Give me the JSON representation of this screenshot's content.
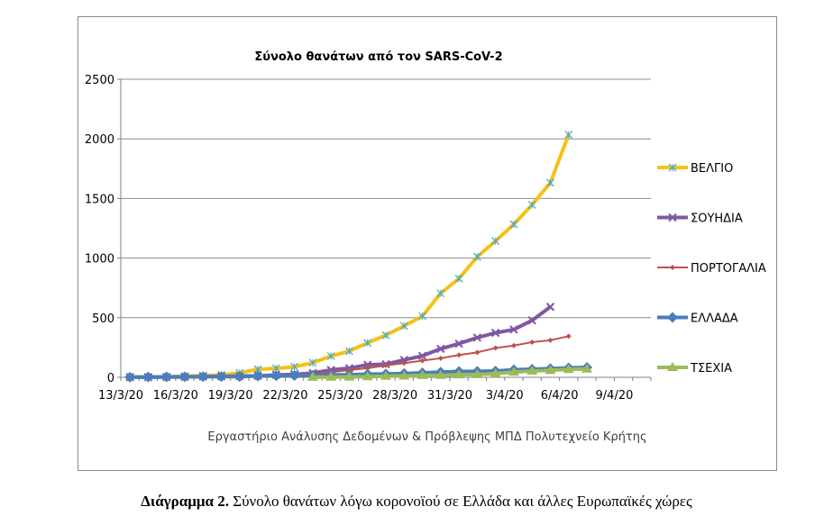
{
  "chart_data": {
    "type": "line",
    "title": "Σύνολο θανάτων από τον SARS-CoV-2",
    "xlabel": "",
    "ylabel": "",
    "ylim": [
      0,
      2500
    ],
    "yticks": [
      "0",
      "500",
      "1000",
      "1500",
      "2000",
      "2500"
    ],
    "xticks": [
      "13/3/20",
      "16/3/20",
      "19/3/20",
      "22/3/20",
      "25/3/20",
      "28/3/20",
      "31/3/20",
      "3/4/20",
      "6/4/20",
      "9/4/20"
    ],
    "x": [
      "13/3/20",
      "14/3/20",
      "15/3/20",
      "16/3/20",
      "17/3/20",
      "18/3/20",
      "19/3/20",
      "20/3/20",
      "21/3/20",
      "22/3/20",
      "23/3/20",
      "24/3/20",
      "25/3/20",
      "26/3/20",
      "27/3/20",
      "28/3/20",
      "29/3/20",
      "30/3/20",
      "31/3/20",
      "1/4/20",
      "2/4/20",
      "3/4/20",
      "4/4/20",
      "5/4/20",
      "6/4/20",
      "7/4/20",
      "8/4/20"
    ],
    "grid": "horizontal",
    "legend_position": "right",
    "series": [
      {
        "name": "ΒΕΛΓΙΟ",
        "color": "#f5c116",
        "marker": "asterisk",
        "values": [
          3,
          4,
          5,
          10,
          14,
          21,
          37,
          67,
          75,
          88,
          122,
          178,
          220,
          289,
          353,
          431,
          513,
          705,
          828,
          1011,
          1143,
          1283,
          1447,
          1632,
          2035,
          null,
          null
        ]
      },
      {
        "name": "ΣΟΥΗΔΙΑ",
        "color": "#7f58a3",
        "marker": "x",
        "values": [
          1,
          1,
          2,
          3,
          6,
          8,
          10,
          12,
          20,
          25,
          36,
          62,
          77,
          105,
          110,
          146,
          180,
          239,
          282,
          333,
          373,
          401,
          477,
          591,
          null,
          null,
          null
        ]
      },
      {
        "name": "ΠΟΡΤΟΓΑΛΙΑ",
        "color": "#c0504d",
        "marker": "diamond",
        "values": [
          0,
          0,
          1,
          1,
          2,
          3,
          6,
          12,
          14,
          23,
          33,
          43,
          60,
          76,
          100,
          119,
          140,
          160,
          187,
          209,
          246,
          266,
          295,
          311,
          345,
          null,
          null
        ]
      },
      {
        "name": "ΕΛΛΑΔΑ",
        "color": "#4a7ebb",
        "marker": "diamond",
        "values": [
          1,
          3,
          4,
          5,
          6,
          6,
          6,
          10,
          13,
          15,
          17,
          20,
          22,
          26,
          28,
          32,
          38,
          43,
          49,
          50,
          53,
          63,
          68,
          73,
          79,
          83,
          null
        ]
      },
      {
        "name": "ΤΣΕΧΙΑ",
        "color": "#9bbb59",
        "marker": "triangle",
        "values": [
          null,
          null,
          null,
          null,
          null,
          null,
          null,
          null,
          null,
          null,
          1,
          2,
          3,
          6,
          9,
          11,
          16,
          17,
          22,
          24,
          31,
          44,
          53,
          59,
          67,
          70,
          null
        ]
      }
    ]
  },
  "credit_text": "Εργαστήριο Ανάλυσης Δεδομένων & Πρόβλεψης ΜΠΔ Πολυτεχνείο Κρήτης",
  "caption": {
    "label": "Διάγραμμα 2.",
    "text": " Σύνολο θανάτων λόγω κορονοϊού σε Ελλάδα και άλλες Ευρωπαϊκές χώρες"
  }
}
